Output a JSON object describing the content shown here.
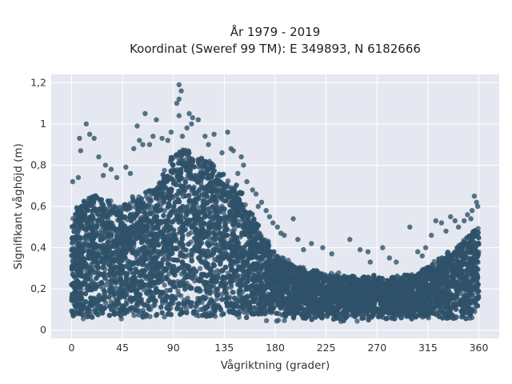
{
  "chart_data": {
    "type": "scatter",
    "title_line1": "År 1979 - 2019",
    "title_line2": "Koordinat (Sweref 99 TM): E 349893, N 6182666",
    "xlabel": "Vågriktning (grader)",
    "ylabel": "Signifikant våghöjd (m)",
    "xlim": [
      -18,
      378
    ],
    "ylim": [
      -0.04,
      1.24
    ],
    "xticks": [
      0,
      45,
      90,
      135,
      180,
      225,
      270,
      315,
      360
    ],
    "xtick_labels": [
      "0",
      "45",
      "90",
      "135",
      "180",
      "225",
      "270",
      "315",
      "360"
    ],
    "yticks": [
      0,
      0.2,
      0.4,
      0.6,
      0.8,
      1.0,
      1.2
    ],
    "ytick_labels": [
      "0",
      "0,2",
      "0,4",
      "0,6",
      "0,8",
      "1",
      "1,2"
    ],
    "grid": true,
    "legend": "none",
    "colors": {
      "marker": "#2f5269",
      "plot_bg": "#e5e8f0",
      "grid": "#ffffff"
    },
    "envelope": {
      "description": "Dense point cloud; upper envelope of significant wave height by direction",
      "x": [
        0,
        10,
        20,
        30,
        45,
        60,
        75,
        85,
        90,
        100,
        110,
        120,
        135,
        150,
        165,
        180,
        200,
        225,
        250,
        270,
        300,
        315,
        330,
        345,
        355,
        360
      ],
      "upper": [
        0.55,
        0.62,
        0.66,
        0.62,
        0.6,
        0.66,
        0.7,
        0.8,
        0.86,
        0.88,
        0.86,
        0.82,
        0.76,
        0.66,
        0.5,
        0.36,
        0.3,
        0.27,
        0.26,
        0.25,
        0.26,
        0.3,
        0.36,
        0.42,
        0.47,
        0.5
      ],
      "lower": 0.05
    },
    "outliers": [
      {
        "x": 95,
        "y": 1.19
      },
      {
        "x": 97,
        "y": 1.16
      },
      {
        "x": 95,
        "y": 1.12
      },
      {
        "x": 93,
        "y": 1.1
      },
      {
        "x": 104,
        "y": 1.05
      },
      {
        "x": 107,
        "y": 1.03
      },
      {
        "x": 112,
        "y": 1.02
      },
      {
        "x": 95,
        "y": 1.04
      },
      {
        "x": 106,
        "y": 1.0
      },
      {
        "x": 13,
        "y": 1.0
      },
      {
        "x": 65,
        "y": 1.05
      },
      {
        "x": 75,
        "y": 1.02
      },
      {
        "x": 58,
        "y": 0.99
      },
      {
        "x": 88,
        "y": 0.96
      },
      {
        "x": 102,
        "y": 0.98
      },
      {
        "x": 126,
        "y": 0.95
      },
      {
        "x": 138,
        "y": 0.96
      },
      {
        "x": 118,
        "y": 0.94
      },
      {
        "x": 72,
        "y": 0.94
      },
      {
        "x": 80,
        "y": 0.93
      },
      {
        "x": 98,
        "y": 0.94
      },
      {
        "x": 20,
        "y": 0.93
      },
      {
        "x": 16,
        "y": 0.95
      },
      {
        "x": 7,
        "y": 0.93
      },
      {
        "x": 60,
        "y": 0.92
      },
      {
        "x": 63,
        "y": 0.9
      },
      {
        "x": 85,
        "y": 0.92
      },
      {
        "x": 8,
        "y": 0.87
      },
      {
        "x": 55,
        "y": 0.88
      },
      {
        "x": 69,
        "y": 0.9
      },
      {
        "x": 121,
        "y": 0.9
      },
      {
        "x": 141,
        "y": 0.88
      },
      {
        "x": 143,
        "y": 0.87
      },
      {
        "x": 150,
        "y": 0.84
      },
      {
        "x": 133,
        "y": 0.86
      },
      {
        "x": 24,
        "y": 0.84
      },
      {
        "x": 30,
        "y": 0.8
      },
      {
        "x": 35,
        "y": 0.78
      },
      {
        "x": 28,
        "y": 0.75
      },
      {
        "x": 48,
        "y": 0.79
      },
      {
        "x": 52,
        "y": 0.76
      },
      {
        "x": 40,
        "y": 0.74
      },
      {
        "x": 1,
        "y": 0.72
      },
      {
        "x": 6,
        "y": 0.74
      },
      {
        "x": 152,
        "y": 0.8
      },
      {
        "x": 147,
        "y": 0.76
      },
      {
        "x": 155,
        "y": 0.72
      },
      {
        "x": 160,
        "y": 0.68
      },
      {
        "x": 163,
        "y": 0.66
      },
      {
        "x": 168,
        "y": 0.62
      },
      {
        "x": 165,
        "y": 0.6
      },
      {
        "x": 172,
        "y": 0.58
      },
      {
        "x": 175,
        "y": 0.55
      },
      {
        "x": 178,
        "y": 0.52
      },
      {
        "x": 182,
        "y": 0.5
      },
      {
        "x": 185,
        "y": 0.47
      },
      {
        "x": 188,
        "y": 0.46
      },
      {
        "x": 196,
        "y": 0.54
      },
      {
        "x": 200,
        "y": 0.44
      },
      {
        "x": 205,
        "y": 0.39
      },
      {
        "x": 212,
        "y": 0.42
      },
      {
        "x": 222,
        "y": 0.4
      },
      {
        "x": 230,
        "y": 0.37
      },
      {
        "x": 246,
        "y": 0.44
      },
      {
        "x": 255,
        "y": 0.39
      },
      {
        "x": 262,
        "y": 0.38
      },
      {
        "x": 275,
        "y": 0.4
      },
      {
        "x": 281,
        "y": 0.35
      },
      {
        "x": 287,
        "y": 0.33
      },
      {
        "x": 299,
        "y": 0.5
      },
      {
        "x": 306,
        "y": 0.38
      },
      {
        "x": 313,
        "y": 0.4
      },
      {
        "x": 318,
        "y": 0.46
      },
      {
        "x": 322,
        "y": 0.53
      },
      {
        "x": 327,
        "y": 0.52
      },
      {
        "x": 331,
        "y": 0.48
      },
      {
        "x": 335,
        "y": 0.55
      },
      {
        "x": 339,
        "y": 0.53
      },
      {
        "x": 342,
        "y": 0.5
      },
      {
        "x": 347,
        "y": 0.53
      },
      {
        "x": 350,
        "y": 0.56
      },
      {
        "x": 353,
        "y": 0.54
      },
      {
        "x": 356,
        "y": 0.65
      },
      {
        "x": 358,
        "y": 0.62
      },
      {
        "x": 359,
        "y": 0.6
      },
      {
        "x": 354,
        "y": 0.58
      },
      {
        "x": 310,
        "y": 0.36
      },
      {
        "x": 264,
        "y": 0.33
      }
    ]
  }
}
